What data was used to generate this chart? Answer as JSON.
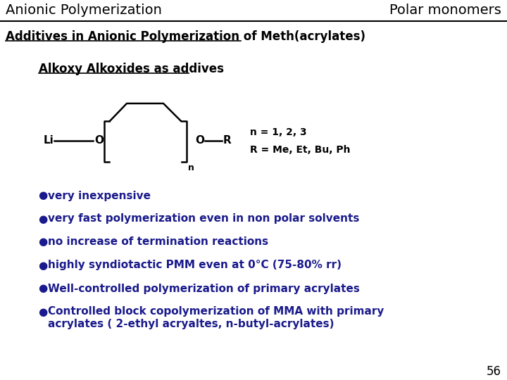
{
  "header_left": "Anionic Polymerization",
  "header_right": "Polar monomers",
  "title": "Additives in Anionic Polymerization of Meth(acrylates)",
  "subtitle": "Alkoxy Alkoxides as addives",
  "n_label": "n = 1, 2, 3",
  "r_label": "R = Me, Et, Bu, Ph",
  "bullets": [
    "very inexpensive",
    "very fast polymerization even in non polar solvents",
    "no increase of termination reactions",
    "highly syndiotactic PMM even at 0°C (75-80% rr)",
    "Well-controlled polymerization of primary acrylates",
    "Controlled block copolymerization of MMA with primary||acrylates ( 2-ethyl acryaltes, n-butyl-acrylates)"
  ],
  "page_number": "56",
  "text_color": "#1a1a8c",
  "header_color": "#000000",
  "bg_color": "#ffffff",
  "line_color": "#000000"
}
